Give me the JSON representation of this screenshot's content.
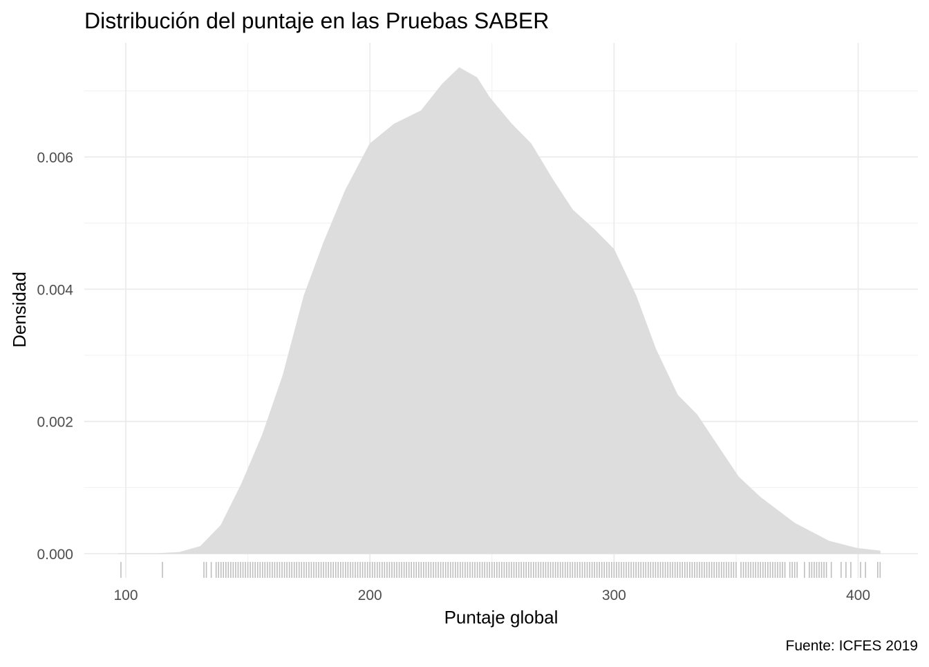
{
  "chart_data": {
    "type": "area",
    "title": "Distribución del puntaje en las Pruebas SABER",
    "xlabel": "Puntaje global",
    "ylabel": "Densidad",
    "caption": "Fuente: ICFES 2019",
    "xlim": [
      85,
      420
    ],
    "ylim": [
      0,
      0.0077
    ],
    "x_ticks": [
      100,
      200,
      300,
      400
    ],
    "x_tick_labels": [
      "100",
      "200",
      "300",
      "400"
    ],
    "y_ticks": [
      0,
      0.002,
      0.004,
      0.006
    ],
    "y_tick_labels": [
      "0.000",
      "0.002",
      "0.004",
      "0.006"
    ],
    "grid": true,
    "fill_color": "#dddddd",
    "rug_color": "#bebebe",
    "density": {
      "x": [
        97,
        112.5,
        122,
        130.6,
        139,
        147.5,
        156,
        164.4,
        173,
        181,
        190,
        200,
        210,
        221,
        229.6,
        236.6,
        243.8,
        249,
        258,
        266,
        275,
        283,
        292,
        300,
        309,
        317,
        326,
        334,
        343,
        351,
        360,
        374,
        388,
        399.6,
        409
      ],
      "y": [
        0,
        0,
        2e-05,
        0.00011,
        0.00043,
        0.00106,
        0.0018,
        0.0027,
        0.0039,
        0.0047,
        0.0055,
        0.0062,
        0.0065,
        0.0067,
        0.0071,
        0.00735,
        0.0072,
        0.0069,
        0.0065,
        0.0062,
        0.00565,
        0.0052,
        0.0049,
        0.0046,
        0.0039,
        0.0031,
        0.0024,
        0.0021,
        0.0016,
        0.00116,
        0.00085,
        0.00046,
        0.00019,
        8e-05,
        4e-05
      ]
    },
    "rug": [
      98,
      115,
      132,
      133,
      135,
      137,
      138,
      139,
      140,
      141,
      142,
      143,
      144,
      145,
      146,
      147,
      148,
      149,
      150,
      151,
      152,
      153,
      154,
      155,
      156,
      157,
      158,
      159,
      160,
      161,
      162,
      163,
      164,
      165,
      166,
      167,
      168,
      169,
      170,
      171,
      172,
      173,
      174,
      175,
      176,
      177,
      178,
      179,
      180,
      181,
      182,
      183,
      184,
      185,
      186,
      187,
      188,
      189,
      190,
      191,
      192,
      193,
      194,
      195,
      196,
      197,
      198,
      199,
      200,
      201,
      202,
      203,
      204,
      205,
      206,
      207,
      208,
      209,
      210,
      211,
      212,
      213,
      214,
      215,
      216,
      217,
      218,
      219,
      220,
      221,
      222,
      223,
      224,
      225,
      226,
      227,
      228,
      229,
      230,
      231,
      232,
      233,
      234,
      235,
      236,
      237,
      238,
      239,
      240,
      241,
      242,
      243,
      244,
      245,
      246,
      247,
      248,
      249,
      250,
      251,
      252,
      253,
      254,
      255,
      256,
      257,
      258,
      259,
      260,
      261,
      262,
      263,
      264,
      265,
      266,
      267,
      268,
      269,
      270,
      271,
      272,
      273,
      274,
      275,
      276,
      277,
      278,
      279,
      280,
      281,
      282,
      283,
      284,
      285,
      286,
      287,
      288,
      289,
      290,
      291,
      292,
      293,
      294,
      295,
      296,
      297,
      298,
      299,
      300,
      301,
      302,
      303,
      304,
      305,
      306,
      307,
      308,
      309,
      310,
      311,
      312,
      313,
      314,
      315,
      316,
      317,
      318,
      319,
      320,
      321,
      322,
      323,
      324,
      325,
      326,
      327,
      328,
      329,
      330,
      331,
      332,
      333,
      334,
      335,
      336,
      337,
      338,
      339,
      340,
      341,
      342,
      343,
      344,
      345,
      346,
      347,
      348,
      349,
      350,
      352,
      353,
      354,
      355,
      356,
      357,
      358,
      359,
      360,
      361,
      362,
      363,
      364,
      365,
      366,
      367,
      368,
      369,
      370,
      372,
      373,
      374,
      375,
      378,
      380,
      381,
      382,
      383,
      384,
      385,
      386,
      387,
      389,
      393,
      395,
      397,
      401,
      403,
      408,
      409
    ]
  }
}
